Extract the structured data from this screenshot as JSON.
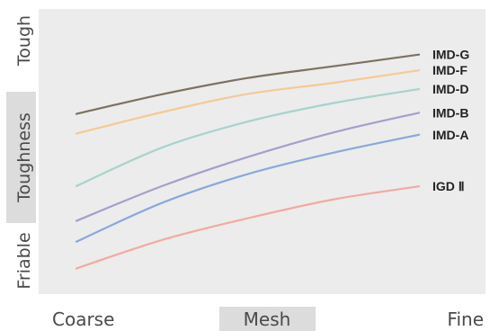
{
  "chart_data": {
    "type": "line",
    "title": "",
    "xlabel": "Mesh",
    "ylabel": "Toughness",
    "x_axis": {
      "low_label": "Coarse",
      "high_label": "Fine",
      "xlim": [
        0,
        1
      ]
    },
    "y_axis": {
      "low_label": "Friable",
      "high_label": "Tough",
      "ylim": [
        0,
        1
      ]
    },
    "grid": false,
    "legend": "inline-right",
    "x": [
      0,
      0.25,
      0.5,
      0.75,
      1
    ],
    "series": [
      {
        "name": "IMD-G",
        "color": "#7d7160",
        "values": [
          0.632,
          0.701,
          0.758,
          0.799,
          0.84
        ]
      },
      {
        "name": "IMD-F",
        "color": "#f5c996",
        "values": [
          0.563,
          0.638,
          0.702,
          0.741,
          0.785
        ]
      },
      {
        "name": "IMD-D",
        "color": "#a7d3cc",
        "values": [
          0.379,
          0.514,
          0.605,
          0.67,
          0.719
        ]
      },
      {
        "name": "IMD-B",
        "color": "#a89dcc",
        "values": [
          0.257,
          0.379,
          0.481,
          0.567,
          0.636
        ]
      },
      {
        "name": "IMD-A",
        "color": "#8aa8dc",
        "values": [
          0.184,
          0.32,
          0.421,
          0.496,
          0.559
        ]
      },
      {
        "name": "IGD Ⅱ",
        "color": "#f2aaa0",
        "values": [
          0.09,
          0.19,
          0.266,
          0.332,
          0.378
        ]
      }
    ]
  }
}
